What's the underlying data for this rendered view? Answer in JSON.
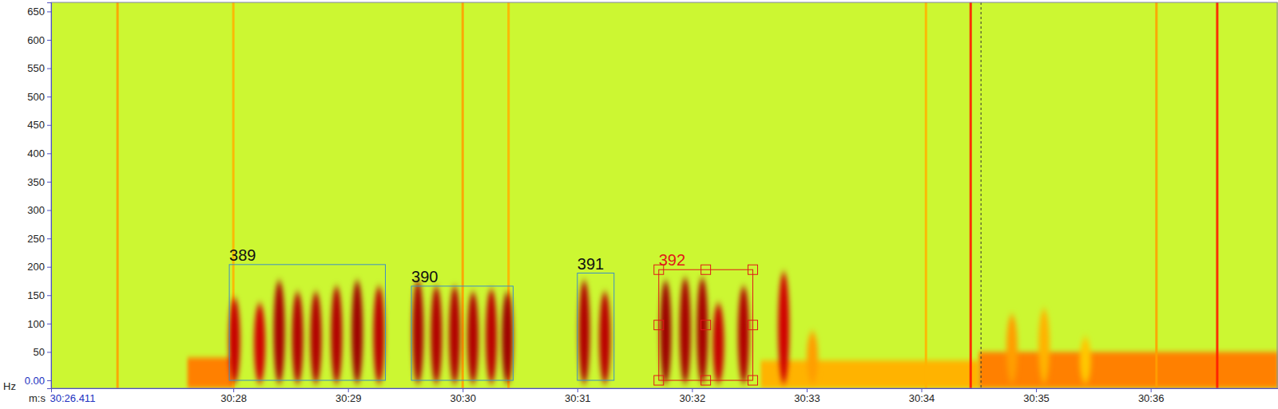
{
  "chart_data": {
    "type": "spectrogram",
    "x_label": "m:s",
    "y_label": "Hz",
    "xlim": [
      1826.411,
      1837.11
    ],
    "ylim": [
      -14,
      666
    ],
    "zlim": [
      0,
      1
    ],
    "xticks": [
      {
        "value": 1826.411,
        "label": "30:26.411"
      },
      {
        "value": 1828,
        "label": "30:28"
      },
      {
        "value": 1829,
        "label": "30:29"
      },
      {
        "value": 1830,
        "label": "30:30"
      },
      {
        "value": 1831,
        "label": "30:31"
      },
      {
        "value": 1832,
        "label": "30:32"
      },
      {
        "value": 1833,
        "label": "30:33"
      },
      {
        "value": 1834,
        "label": "30:34"
      },
      {
        "value": 1835,
        "label": "30:35"
      },
      {
        "value": 1836,
        "label": "30:36"
      }
    ],
    "yticks": [
      {
        "value": 0,
        "label": "0.00"
      },
      50,
      100,
      150,
      200,
      250,
      300,
      350,
      400,
      450,
      500,
      550,
      600,
      650
    ],
    "background_level": 0.56,
    "low_bands": [
      {
        "t0": 1827.6,
        "t1": 1828.0,
        "fmax": 40,
        "level": 0.75
      },
      {
        "t0": 1832.6,
        "t1": 1834.5,
        "fmax": 35,
        "level": 0.7
      },
      {
        "t0": 1834.5,
        "t1": 1837.11,
        "fmax": 50,
        "level": 0.75
      }
    ],
    "clicks": [
      {
        "t": 1826.99,
        "level": 0.72
      },
      {
        "t": 1828.0,
        "level": 0.7
      },
      {
        "t": 1830.0,
        "level": 0.72
      },
      {
        "t": 1830.4,
        "level": 0.7
      },
      {
        "t": 1834.04,
        "level": 0.7
      },
      {
        "t": 1834.43,
        "level": 0.85
      },
      {
        "t": 1836.05,
        "level": 0.72
      },
      {
        "t": 1836.58,
        "level": 0.85
      }
    ],
    "pulses": [
      {
        "t": 1828.01,
        "fmax": 140,
        "level": 0.93
      },
      {
        "t": 1828.23,
        "fmax": 130,
        "level": 0.92
      },
      {
        "t": 1828.4,
        "fmax": 170,
        "level": 0.96
      },
      {
        "t": 1828.56,
        "fmax": 150,
        "level": 0.95
      },
      {
        "t": 1828.72,
        "fmax": 150,
        "level": 0.95
      },
      {
        "t": 1828.9,
        "fmax": 160,
        "level": 0.95
      },
      {
        "t": 1829.08,
        "fmax": 170,
        "level": 0.97
      },
      {
        "t": 1829.27,
        "fmax": 160,
        "level": 0.94
      },
      {
        "t": 1829.61,
        "fmax": 170,
        "level": 0.96
      },
      {
        "t": 1829.77,
        "fmax": 160,
        "level": 0.95
      },
      {
        "t": 1829.93,
        "fmax": 160,
        "level": 0.95
      },
      {
        "t": 1830.09,
        "fmax": 150,
        "level": 0.95
      },
      {
        "t": 1830.25,
        "fmax": 155,
        "level": 0.94
      },
      {
        "t": 1830.39,
        "fmax": 150,
        "level": 0.97
      },
      {
        "t": 1831.06,
        "fmax": 170,
        "level": 0.95
      },
      {
        "t": 1831.24,
        "fmax": 150,
        "level": 0.94
      },
      {
        "t": 1831.77,
        "fmax": 170,
        "level": 0.97
      },
      {
        "t": 1831.94,
        "fmax": 175,
        "level": 0.96
      },
      {
        "t": 1832.09,
        "fmax": 175,
        "level": 0.96
      },
      {
        "t": 1832.23,
        "fmax": 130,
        "level": 0.93
      },
      {
        "t": 1832.45,
        "fmax": 160,
        "level": 0.95
      },
      {
        "t": 1832.8,
        "fmax": 185,
        "level": 0.92
      },
      {
        "t": 1833.05,
        "fmax": 80,
        "level": 0.72
      },
      {
        "t": 1834.79,
        "fmax": 110,
        "level": 0.72
      },
      {
        "t": 1835.07,
        "fmax": 120,
        "level": 0.7
      },
      {
        "t": 1835.43,
        "fmax": 70,
        "level": 0.68
      }
    ],
    "cursor": 1834.52,
    "annotations": [
      {
        "label": "389",
        "x0": 1827.965,
        "x1": 1829.326,
        "f0": 0,
        "f1": 204,
        "color": "#3c8fc4"
      },
      {
        "label": "390",
        "x0": 1829.553,
        "x1": 1830.44,
        "f0": 0,
        "f1": 166,
        "color": "#3c8fc4"
      },
      {
        "label": "391",
        "x0": 1831.0,
        "x1": 1831.32,
        "f0": 0,
        "f1": 189,
        "color": "#3c8fc4"
      },
      {
        "label": "392",
        "x0": 1831.71,
        "x1": 1832.53,
        "f0": 0,
        "f1": 195,
        "color": "#e01818"
      }
    ]
  }
}
